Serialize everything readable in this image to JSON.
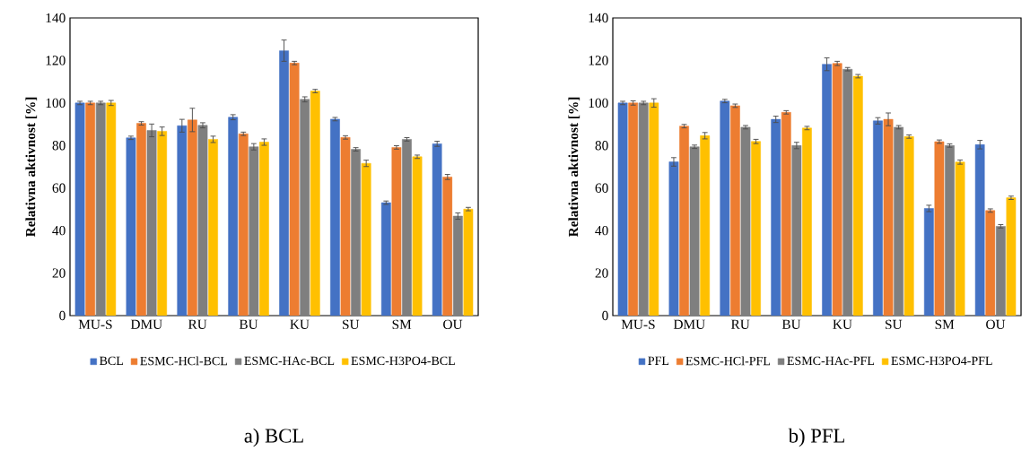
{
  "chart_data": [
    {
      "type": "bar",
      "ylabel": "Relativna aktivnost [%]",
      "categories": [
        "MU-S",
        "DMU",
        "RU",
        "BU",
        "KU",
        "SU",
        "SM",
        "OU"
      ],
      "ylim": [
        0,
        140
      ],
      "yticks": [
        0,
        20,
        40,
        60,
        80,
        100,
        120,
        140
      ],
      "legend": "bottom",
      "annotations": [
        "a) BCL"
      ],
      "series": [
        {
          "name": "BCL",
          "color": "#4472c4",
          "values": [
            100,
            83.6,
            89.3,
            93.3,
            124.6,
            92.4,
            53.1,
            80.8
          ],
          "errors": [
            0.8,
            0.8,
            3,
            1.2,
            5,
            0.8,
            0.8,
            1.2
          ]
        },
        {
          "name": "ESMC-HCl-BCL",
          "color": "#ed7d31",
          "values": [
            100,
            90.4,
            92,
            85.5,
            118.8,
            83.8,
            79.1,
            65.2
          ],
          "errors": [
            0.8,
            0.8,
            5.5,
            0.8,
            0.8,
            0.8,
            0.8,
            1.2
          ]
        },
        {
          "name": "ESMC-HAc-BCL",
          "color": "#7f7f7f",
          "values": [
            100,
            87.1,
            89.5,
            79.4,
            101.7,
            78.2,
            82.9,
            46.8
          ],
          "errors": [
            0.8,
            3,
            1.2,
            1.5,
            1.2,
            0.8,
            0.8,
            1.5
          ]
        },
        {
          "name": "ESMC-H3PO4-BCL",
          "color": "#ffc000",
          "values": [
            100,
            86.7,
            82.9,
            81.6,
            105.6,
            71.6,
            74.7,
            50.1
          ],
          "errors": [
            1.2,
            2,
            1.5,
            1.5,
            0.8,
            1.5,
            0.8,
            0.8
          ]
        }
      ]
    },
    {
      "type": "bar",
      "ylabel": "Relativna aktivnost [%]",
      "categories": [
        "MU-S",
        "DMU",
        "RU",
        "BU",
        "KU",
        "SU",
        "SM",
        "OU"
      ],
      "ylim": [
        0,
        140
      ],
      "yticks": [
        0,
        20,
        40,
        60,
        80,
        100,
        120,
        140
      ],
      "legend": "bottom",
      "annotations": [
        "b) PFL"
      ],
      "series": [
        {
          "name": "PFL",
          "color": "#4472c4",
          "values": [
            100,
            72.3,
            100.9,
            92.3,
            118.2,
            91.6,
            50.4,
            80.4
          ],
          "errors": [
            0.8,
            2,
            0.8,
            1.5,
            3,
            1.5,
            1.5,
            2
          ]
        },
        {
          "name": "ESMC-HCl-PFL",
          "color": "#ed7d31",
          "values": [
            100,
            89.1,
            98.7,
            95.6,
            118.6,
            92.3,
            81.8,
            49.4
          ],
          "errors": [
            1,
            0.8,
            0.8,
            0.8,
            1,
            3,
            0.8,
            0.8
          ]
        },
        {
          "name": "ESMC-HAc-PFL",
          "color": "#7f7f7f",
          "values": [
            100,
            79.4,
            88.6,
            80,
            115.9,
            88.6,
            80,
            42
          ],
          "errors": [
            0.8,
            0.8,
            0.8,
            1.5,
            0.8,
            0.8,
            0.8,
            0.8
          ]
        },
        {
          "name": "ESMC-H3PO4-PFL",
          "color": "#ffc000",
          "values": [
            100,
            84.6,
            81.9,
            88.2,
            112.6,
            84.2,
            72.2,
            55.4
          ],
          "errors": [
            2,
            1.5,
            1,
            0.8,
            0.8,
            0.8,
            1,
            0.8
          ]
        }
      ]
    }
  ]
}
